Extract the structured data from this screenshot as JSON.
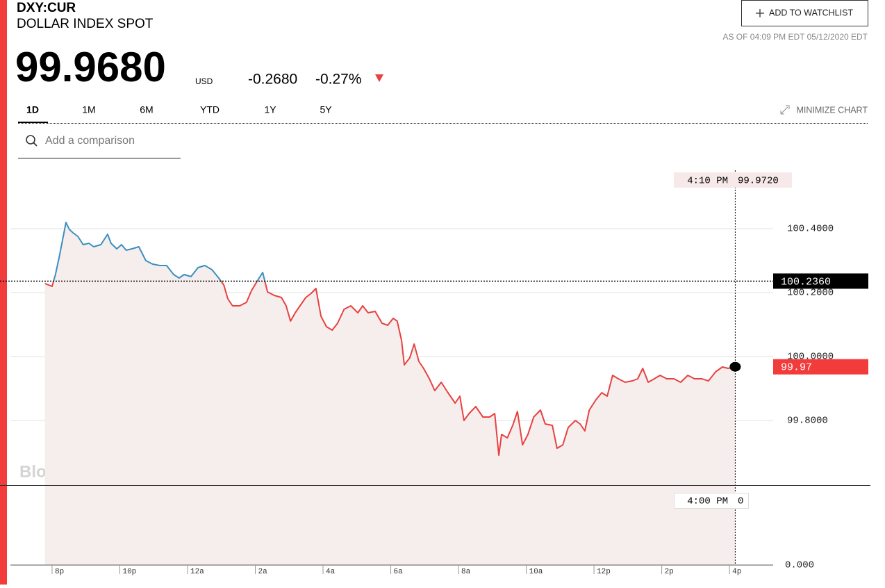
{
  "header": {
    "symbol": "DXY:CUR",
    "name": "DOLLAR INDEX SPOT",
    "price": "99.9680",
    "currency": "USD",
    "change": "-0.2680",
    "change_pct": "-0.27%",
    "watchlist_button": "ADD TO WATCHLIST",
    "as_of": "AS OF 04:09 PM EDT 05/12/2020 EDT",
    "ranges": [
      "1D",
      "1M",
      "6M",
      "YTD",
      "1Y",
      "5Y"
    ],
    "minimize": "MINIMIZE CHART",
    "comparison_placeholder": "Add a comparison"
  },
  "chart_data": {
    "type": "line",
    "watermark": "BloombergMarkets",
    "x": [
      -0.21,
      0,
      0.1,
      0.21,
      0.31,
      0.41,
      0.51,
      0.62,
      0.76,
      0.92,
      1.09,
      1.23,
      1.44,
      1.64,
      1.74,
      1.91,
      2.05,
      2.19,
      2.36,
      2.56,
      2.77,
      2.97,
      3.18,
      3.38,
      3.59,
      3.75,
      3.9,
      4.1,
      4.31,
      4.51,
      4.72,
      4.92,
      5.07,
      5.19,
      5.33,
      5.54,
      5.74,
      5.89,
      6.05,
      6.22,
      6.36,
      6.56,
      6.77,
      6.91,
      7.04,
      7.18,
      7.32,
      7.49,
      7.65,
      7.79,
      7.94,
      8.1,
      8.27,
      8.43,
      8.62,
      8.82,
      9.03,
      9.17,
      9.33,
      9.54,
      9.74,
      9.91,
      10.07,
      10.19,
      10.32,
      10.4,
      10.56,
      10.69,
      10.83,
      10.97,
      11.14,
      11.3,
      11.49,
      11.69,
      11.9,
      12.04,
      12.16,
      12.31,
      12.51,
      12.72,
      12.92,
      13.07,
      13.19,
      13.27,
      13.44,
      13.6,
      13.74,
      13.89,
      14.05,
      14.22,
      14.42,
      14.56,
      14.77,
      14.91,
      15.08,
      15.24,
      15.45,
      15.59,
      15.73,
      15.86,
      16.06,
      16.23,
      16.39,
      16.55,
      16.72,
      16.92,
      17.13,
      17.29,
      17.44,
      17.6,
      17.78,
      17.95,
      18.15,
      18.36,
      18.56,
      18.77,
      18.97,
      19.18,
      19.38,
      19.59,
      19.79,
      19.96,
      20.17
    ],
    "series": [
      {
        "name": "DXY:CUR",
        "color_above": "#3a8fc0",
        "color_below": "#e8413f",
        "values": [
          100.2283,
          100.2196,
          100.2565,
          100.3109,
          100.3652,
          100.4196,
          100.3978,
          100.387,
          100.3761,
          100.35,
          100.3543,
          100.3435,
          100.35,
          100.3826,
          100.3543,
          100.337,
          100.35,
          100.3326,
          100.337,
          100.3435,
          100.3,
          100.2891,
          100.2848,
          100.2848,
          100.2565,
          100.2457,
          100.2565,
          100.25,
          100.2783,
          100.2848,
          100.2717,
          100.2457,
          100.2239,
          100.1804,
          100.1587,
          100.1587,
          100.1696,
          100.2065,
          100.2348,
          100.263,
          100.2022,
          100.1913,
          100.1848,
          100.1587,
          100.1109,
          100.137,
          100.1587,
          100.1848,
          100.1978,
          100.213,
          100.1261,
          100.0935,
          100.0826,
          100.1043,
          100.1478,
          100.1587,
          100.137,
          100.1587,
          100.137,
          100.1413,
          100.1043,
          100.0978,
          100.1196,
          100.1109,
          100.05,
          99.9739,
          99.9957,
          100.0391,
          99.9848,
          99.963,
          99.9304,
          99.8935,
          99.9196,
          99.887,
          99.8543,
          99.8761,
          99.8,
          99.8217,
          99.8435,
          99.8109,
          99.8109,
          99.8217,
          99.6913,
          99.7565,
          99.7457,
          99.7848,
          99.8283,
          99.7239,
          99.7565,
          99.8109,
          99.8326,
          99.7891,
          99.7848,
          99.713,
          99.7239,
          99.7783,
          99.8,
          99.7891,
          99.7674,
          99.8326,
          99.8652,
          99.887,
          99.8761,
          99.9413,
          99.9304,
          99.9196,
          99.9239,
          99.9304,
          99.963,
          99.9196,
          99.9304,
          99.9413,
          99.9304,
          99.9304,
          99.9196,
          99.9413,
          99.9304,
          99.9304,
          99.9239,
          99.9522,
          99.9674,
          99.963,
          99.968
        ]
      }
    ],
    "previous_close": {
      "value": 100.236,
      "label": "100.2360"
    },
    "last_label": "99.97",
    "crosshair": {
      "time": "4:10 PM",
      "value": "99.9720",
      "volume_time": "4:00 PM",
      "volume": "0"
    },
    "volume_axis_label": "0.000",
    "xlim": [
      -1.23,
      21.29
    ],
    "ylim": [
      99.3478,
      100.5935
    ],
    "yticks": [
      {
        "value": 100.4,
        "label": "100.4000"
      },
      {
        "value": 100.2,
        "label": "100.2000"
      },
      {
        "value": 100.0,
        "label": "100.0000"
      },
      {
        "value": 99.8,
        "label": "99.8000"
      }
    ],
    "xticks": [
      {
        "value": 0,
        "label": "8p"
      },
      {
        "value": 2,
        "label": "10p"
      },
      {
        "value": 4,
        "label": "12a"
      },
      {
        "value": 6,
        "label": "2a"
      },
      {
        "value": 8,
        "label": "4a"
      },
      {
        "value": 10,
        "label": "6a"
      },
      {
        "value": 12,
        "label": "8a"
      },
      {
        "value": 14,
        "label": "10a"
      },
      {
        "value": 16,
        "label": "12p"
      },
      {
        "value": 18,
        "label": "2p"
      },
      {
        "value": 20,
        "label": "4p"
      }
    ],
    "grid": true
  }
}
